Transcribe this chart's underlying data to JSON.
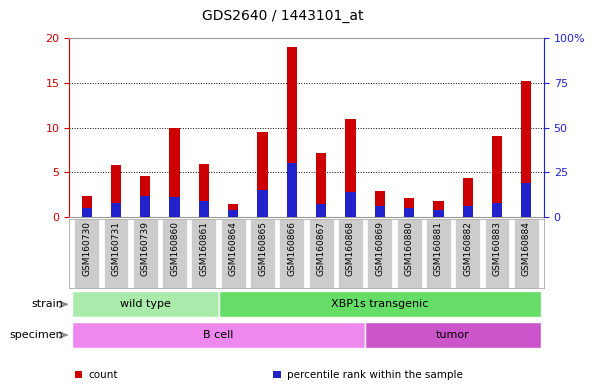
{
  "title": "GDS2640 / 1443101_at",
  "samples": [
    "GSM160730",
    "GSM160731",
    "GSM160739",
    "GSM160860",
    "GSM160861",
    "GSM160864",
    "GSM160865",
    "GSM160866",
    "GSM160867",
    "GSM160868",
    "GSM160869",
    "GSM160880",
    "GSM160881",
    "GSM160882",
    "GSM160883",
    "GSM160884"
  ],
  "count_values": [
    2.3,
    5.8,
    4.6,
    10.0,
    5.9,
    1.4,
    9.5,
    19.0,
    7.2,
    11.0,
    2.9,
    2.1,
    1.8,
    4.4,
    9.1,
    15.2
  ],
  "percentile_values": [
    5,
    8,
    12,
    11,
    9,
    4,
    15,
    30,
    7,
    14,
    6,
    5,
    4,
    6,
    8,
    19
  ],
  "bar_color": "#cc0000",
  "percentile_color": "#2222cc",
  "ylim_left": [
    0,
    20
  ],
  "ylim_right": [
    0,
    100
  ],
  "yticks_left": [
    0,
    5,
    10,
    15,
    20
  ],
  "yticks_right": [
    0,
    25,
    50,
    75,
    100
  ],
  "ytick_labels_right": [
    "0",
    "25",
    "50",
    "75",
    "100%"
  ],
  "strain_groups": [
    {
      "label": "wild type",
      "start": 0,
      "end": 4,
      "color": "#aaeaaa"
    },
    {
      "label": "XBP1s transgenic",
      "start": 5,
      "end": 15,
      "color": "#66dd66"
    }
  ],
  "specimen_groups": [
    {
      "label": "B cell",
      "start": 0,
      "end": 9,
      "color": "#ee88ee"
    },
    {
      "label": "tumor",
      "start": 10,
      "end": 15,
      "color": "#cc55cc"
    }
  ],
  "legend_items": [
    {
      "label": "count",
      "color": "#cc0000"
    },
    {
      "label": "percentile rank within the sample",
      "color": "#2222cc"
    }
  ],
  "left_axis_color": "#cc0000",
  "right_axis_color": "#2222cc",
  "background_color": "#ffffff",
  "plot_bg_color": "#ffffff",
  "tick_bg_color": "#cccccc",
  "bar_width": 0.35
}
